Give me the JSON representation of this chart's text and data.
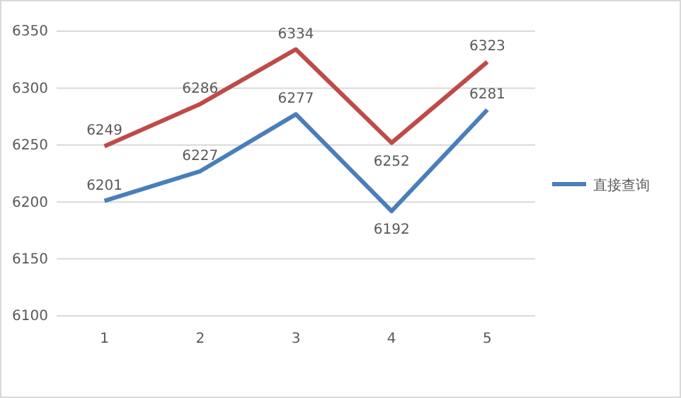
{
  "chart_data": {
    "type": "line",
    "categories": [
      "1",
      "2",
      "3",
      "4",
      "5"
    ],
    "series": [
      {
        "name": "直接查询",
        "color": "#4a7ebb",
        "values": [
          6201,
          6227,
          6277,
          6192,
          6281
        ]
      },
      {
        "color": "#be4b48",
        "values": [
          6249,
          6286,
          6334,
          6252,
          6323
        ]
      }
    ],
    "ylim": [
      6100,
      6350
    ],
    "yticks": [
      6100,
      6150,
      6200,
      6250,
      6300,
      6350
    ],
    "grid": "y",
    "legend": "right",
    "data_labels": true,
    "marker": "none",
    "line_style": "solid"
  }
}
